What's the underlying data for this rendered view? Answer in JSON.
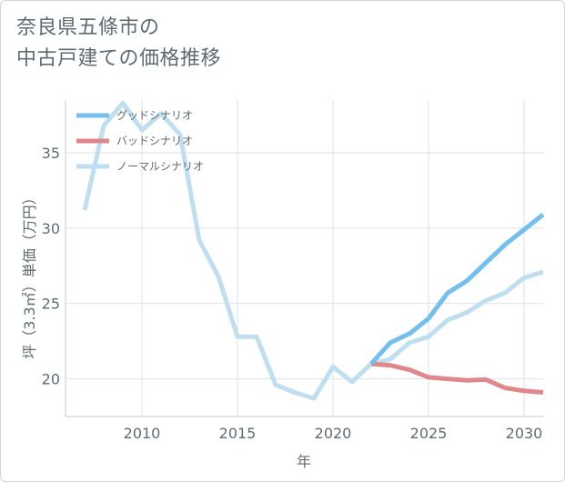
{
  "title_lines": [
    "奈良県五條市の",
    "中古戸建ての価格推移"
  ],
  "chart_data": {
    "type": "line",
    "xlabel": "年",
    "ylabel": "坪（3.3㎡）単価（万円）",
    "xlim": [
      2006,
      2031
    ],
    "ylim": [
      17.5,
      38.5
    ],
    "x_ticks": [
      2010,
      2015,
      2020,
      2025,
      2030
    ],
    "y_ticks": [
      20,
      25,
      30,
      35
    ],
    "grid": true,
    "legend_position": "top-left",
    "series": [
      {
        "name": "グッドシナリオ",
        "color": "#74bfee",
        "x": [
          2022,
          2023,
          2024,
          2025,
          2026,
          2027,
          2028,
          2029,
          2030,
          2031
        ],
        "values": [
          21.0,
          22.4,
          23.0,
          24.0,
          25.7,
          26.5,
          27.7,
          28.9,
          29.9,
          30.9
        ]
      },
      {
        "name": "バッドシナリオ",
        "color": "#e0878b",
        "x": [
          2022,
          2023,
          2024,
          2025,
          2026,
          2027,
          2028,
          2029,
          2030,
          2031
        ],
        "values": [
          21.0,
          20.9,
          20.6,
          20.1,
          20.0,
          19.9,
          19.95,
          19.4,
          19.2,
          19.1
        ]
      },
      {
        "name": "ノーマルシナリオ",
        "color": "#bfdff0",
        "x": [
          2007,
          2008,
          2009,
          2010,
          2011,
          2012,
          2013,
          2014,
          2015,
          2016,
          2017,
          2018,
          2019,
          2020,
          2021,
          2022,
          2023,
          2024,
          2025,
          2026,
          2027,
          2028,
          2029,
          2030,
          2031
        ],
        "values": [
          31.2,
          36.8,
          38.3,
          36.5,
          37.6,
          36.2,
          29.2,
          26.8,
          22.8,
          22.8,
          19.6,
          19.1,
          18.7,
          20.8,
          19.8,
          21.0,
          21.3,
          22.4,
          22.8,
          23.9,
          24.4,
          25.2,
          25.7,
          26.7,
          27.1
        ]
      }
    ]
  }
}
